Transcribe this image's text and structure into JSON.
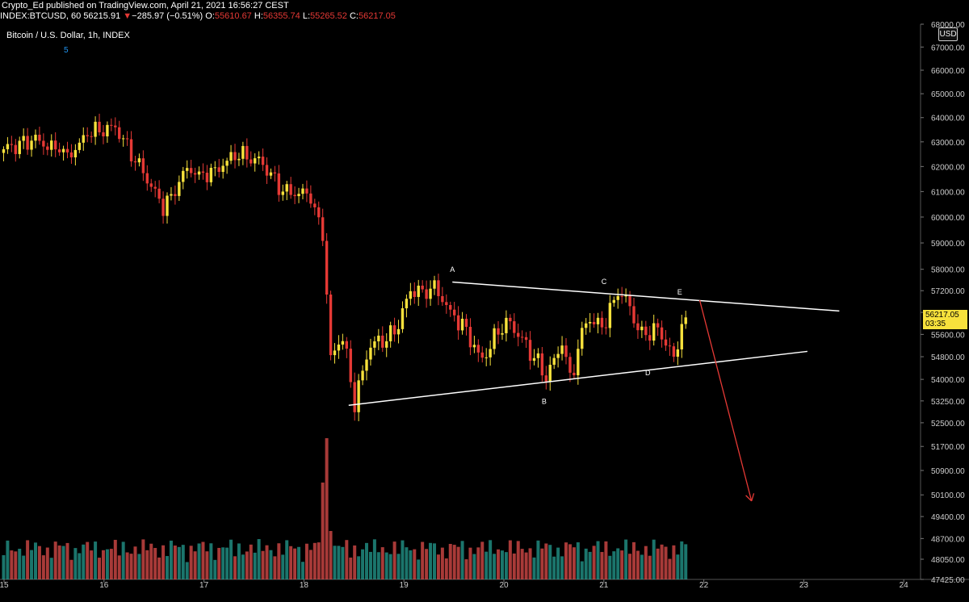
{
  "header": {
    "author": "Crypto_Ed",
    "published_text": "published on TradingView.com, April 21, 2021 16:56:27 CEST",
    "symbol": "INDEX:BTCUSD, 60",
    "last": "56215.91",
    "change_arrow": "▼",
    "change": "−285.97 (−0.51%)",
    "o_label": "O:",
    "o": "55610.67",
    "h_label": "H:",
    "h": "56355.74",
    "l_label": "L:",
    "l": "55265.52",
    "c_label": "C:",
    "c": "56217.05"
  },
  "chart_title": "Bitcoin / U.S. Dollar, 1h, INDEX",
  "indicator_value": "5",
  "currency_button": "USD",
  "price_badge": {
    "price": "56217.05",
    "countdown": "03:35"
  },
  "colors": {
    "up": "#f7e13c",
    "down": "#e53935",
    "vol_up": "#26a69a",
    "vol_down": "#ef5350",
    "line": "#ffffff",
    "arrow": "#e53935"
  },
  "chart_data": {
    "type": "candlestick",
    "ylim": [
      47425,
      68000
    ],
    "y_ticks": [
      "68000.00",
      "67000.00",
      "66000.00",
      "65000.00",
      "64000.00",
      "63000.00",
      "62000.00",
      "61000.00",
      "60000.00",
      "59000.00",
      "58000.00",
      "57200.00",
      "56400.00",
      "55600.00",
      "54800.00",
      "54000.00",
      "53250.00",
      "52500.00",
      "51700.00",
      "50900.00",
      "50100.00",
      "49400.00",
      "48700.00",
      "48050.00",
      "47425.00"
    ],
    "x_ticks": [
      "15",
      "16",
      "17",
      "18",
      "19",
      "20",
      "21",
      "22",
      "23",
      "24"
    ],
    "close_keypoints": [
      [
        0,
        62700
      ],
      [
        8,
        63100
      ],
      [
        16,
        62400
      ],
      [
        22,
        63400
      ],
      [
        28,
        63600
      ],
      [
        34,
        62000
      ],
      [
        40,
        60400
      ],
      [
        46,
        61900
      ],
      [
        52,
        61700
      ],
      [
        58,
        62500
      ],
      [
        64,
        62300
      ],
      [
        70,
        61000
      ],
      [
        76,
        60900
      ],
      [
        80,
        59400
      ],
      [
        82,
        54700
      ],
      [
        85,
        55500
      ],
      [
        88,
        53200
      ],
      [
        92,
        55200
      ],
      [
        98,
        55600
      ],
      [
        102,
        57200
      ],
      [
        108,
        57300
      ],
      [
        110,
        56900
      ],
      [
        116,
        55700
      ],
      [
        120,
        54700
      ],
      [
        126,
        56200
      ],
      [
        130,
        55400
      ],
      [
        136,
        54100
      ],
      [
        140,
        55200
      ],
      [
        142,
        54000
      ],
      [
        146,
        56100
      ],
      [
        150,
        55900
      ],
      [
        154,
        57000
      ],
      [
        156,
        56900
      ],
      [
        160,
        55500
      ],
      [
        164,
        55800
      ],
      [
        168,
        54800
      ],
      [
        170,
        56000
      ],
      [
        171,
        56217
      ]
    ],
    "pattern_labels": [
      "A",
      "B",
      "C",
      "D",
      "E"
    ],
    "trendlines": [
      {
        "name": "upper",
        "from": [
          113,
          57520
        ],
        "to": [
          210,
          56450
        ]
      },
      {
        "name": "lower",
        "from": [
          87,
          53100
        ],
        "to": [
          202,
          54990
        ]
      }
    ],
    "projection_arrow": {
      "from": [
        175,
        56850
      ],
      "to": [
        188,
        49900
      ]
    }
  }
}
